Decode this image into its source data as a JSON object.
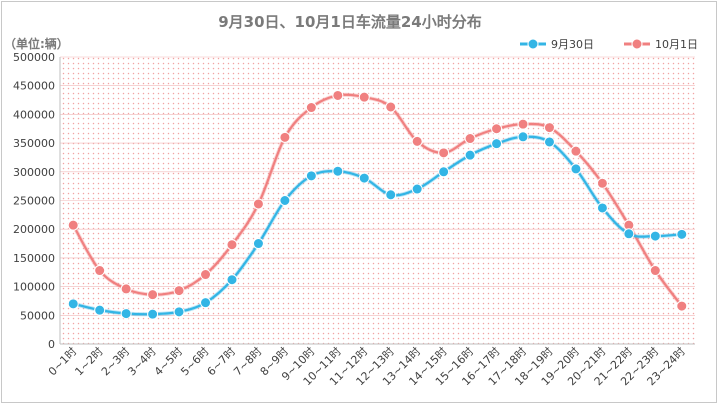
{
  "chart_data": {
    "type": "line",
    "title": "9月30日、10月1日车流量24小时分布",
    "unit_label": "（单位:辆）",
    "categories": [
      "0~1时",
      "1~2时",
      "2~3时",
      "3~4时",
      "4~5时",
      "5~6时",
      "6~7时",
      "7~8时",
      "8~9时",
      "9~10时",
      "10~11时",
      "11~12时",
      "12~13时",
      "13~14时",
      "14~15时",
      "15~16时",
      "16~17时",
      "17~18时",
      "18~19时",
      "19~20时",
      "20~21时",
      "21~22时",
      "22~23时",
      "23~24时"
    ],
    "series": [
      {
        "name": "9月30日",
        "color": "#33b5e5",
        "values": [
          70000,
          59000,
          53000,
          52000,
          56000,
          72000,
          112000,
          175000,
          250000,
          293000,
          301000,
          289000,
          260000,
          270000,
          300000,
          329000,
          349000,
          361000,
          352000,
          305000,
          237000,
          192000,
          188000,
          191000
        ]
      },
      {
        "name": "10月1日",
        "color": "#f08080",
        "values": [
          207000,
          128000,
          96000,
          86000,
          93000,
          121000,
          173000,
          244000,
          360000,
          412000,
          433000,
          430000,
          413000,
          353000,
          333000,
          358000,
          375000,
          383000,
          377000,
          336000,
          280000,
          207000,
          128000,
          66000
        ]
      }
    ],
    "ylim": [
      0,
      500000
    ],
    "yticks": [
      "0",
      "50000",
      "100000",
      "150000",
      "200000",
      "250000",
      "300000",
      "350000",
      "400000",
      "450000",
      "500000"
    ],
    "xlabel": "",
    "ylabel": "",
    "grid": true,
    "legend_position": "top-right",
    "plot_background": "dotted pink"
  }
}
